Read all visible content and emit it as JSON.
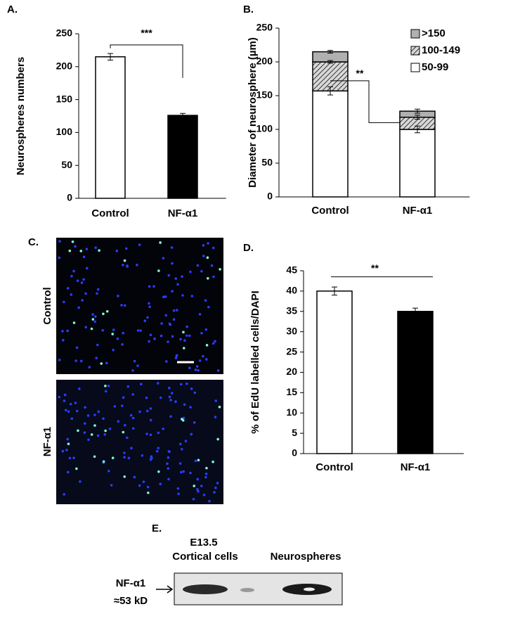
{
  "chart_data": [
    {
      "type": "bar",
      "label": "A.",
      "ylabel": "Neurospheres numbers",
      "categories": [
        "Control",
        "NF-α1"
      ],
      "values": [
        215,
        126
      ],
      "errors": [
        5,
        3
      ],
      "colors": [
        "#ffffff",
        "#000000"
      ],
      "ylim": [
        0,
        250
      ],
      "yticks": [
        0,
        50,
        100,
        150,
        200,
        250
      ],
      "annotation": "***"
    },
    {
      "type": "stacked_bar",
      "label": "B.",
      "ylabel": "Diameter of neurosphere (µm)",
      "categories": [
        "Control",
        "NF-α1"
      ],
      "series": [
        {
          "name": "50-99",
          "color": "#ffffff",
          "values": [
            157,
            100
          ],
          "errors": [
            6,
            5
          ]
        },
        {
          "name": "100-149",
          "color": "#808080",
          "hatch": true,
          "values": [
            43,
            18
          ],
          "errors": [
            2,
            3
          ]
        },
        {
          "name": ">150",
          "color": "#b0b0b0",
          "values": [
            15,
            9
          ],
          "errors": [
            2,
            3
          ]
        }
      ],
      "legend": "upper right",
      "ylim": [
        0,
        250
      ],
      "yticks": [
        0,
        50,
        100,
        150,
        200,
        250
      ],
      "annotation": "**"
    },
    {
      "type": "bar",
      "label": "D.",
      "ylabel": "% of EdU labelled cells/DAPI",
      "categories": [
        "Control",
        "NF-α1"
      ],
      "values": [
        40,
        35
      ],
      "errors": [
        1,
        0.8
      ],
      "colors": [
        "#ffffff",
        "#000000"
      ],
      "ylim": [
        0,
        45
      ],
      "yticks": [
        0,
        5,
        10,
        15,
        20,
        25,
        30,
        35,
        40,
        45
      ],
      "annotation": "**"
    }
  ],
  "image_panel": {
    "label": "C.",
    "rows": [
      "Control",
      "NF-α1"
    ]
  },
  "blot_panel": {
    "label": "E.",
    "lanes": [
      [
        "E13.5",
        "Cortical cells"
      ],
      [
        "Neurospheres"
      ]
    ],
    "protein": "NF-α1",
    "size": "≈53 kD"
  }
}
